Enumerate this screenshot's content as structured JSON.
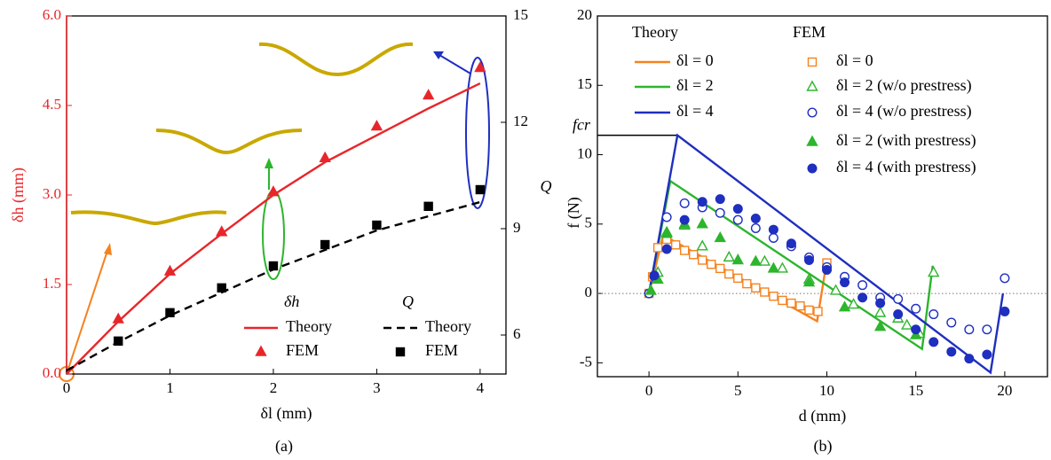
{
  "chart_data": [
    {
      "type": "line",
      "caption": "(a)",
      "x_label": "δl (mm)",
      "y_label": "δh (mm)",
      "y2_label": "Q",
      "xlim": [
        0,
        4.25
      ],
      "xticks": [
        0,
        1,
        2,
        3,
        4
      ],
      "ylim": [
        0,
        6
      ],
      "yticks": [
        {
          "value": 0,
          "label": "0.0"
        },
        {
          "value": 1.5,
          "label": "1.5"
        },
        {
          "value": 3,
          "label": "3.0"
        },
        {
          "value": 4.5,
          "label": "4.5"
        },
        {
          "value": 6,
          "label": "6.0"
        }
      ],
      "y_color": "#e8262a",
      "y2lim": [
        4.9,
        15
      ],
      "y2ticks": [
        6,
        9,
        12,
        15
      ],
      "legend_titles": [
        "δh",
        "Q"
      ],
      "x": [
        0,
        0.5,
        1,
        1.5,
        2,
        2.5,
        3,
        3.5,
        4
      ],
      "series": [
        {
          "name": "Theory",
          "color": "#e8262a",
          "values": [
            0,
            0.88,
            1.68,
            2.35,
            3.0,
            3.55,
            4.0,
            4.45,
            4.87
          ]
        },
        {
          "name": "FEM",
          "color": "#e8262a",
          "marker": "triangle",
          "filled": true,
          "values": [
            null,
            0.92,
            1.72,
            2.38,
            3.05,
            3.62,
            4.15,
            4.67,
            5.13
          ]
        },
        {
          "name": "Theory",
          "color": "#000000",
          "dashed": true,
          "axis": "y2",
          "values": [
            5.0,
            5.8,
            6.55,
            7.2,
            7.85,
            8.4,
            8.95,
            9.35,
            9.75
          ]
        },
        {
          "name": "FEM",
          "color": "#000000",
          "marker": "square",
          "filled": true,
          "axis": "y2",
          "values": [
            null,
            5.83,
            6.63,
            7.33,
            7.95,
            8.55,
            9.1,
            9.63,
            10.1
          ]
        }
      ]
    },
    {
      "type": "line",
      "caption": "(b)",
      "x_label": "d (mm)",
      "y_label": "f (N)",
      "xlim": [
        -2.9,
        22.4
      ],
      "xticks": [
        0,
        5,
        10,
        15,
        20
      ],
      "ylim": [
        -6,
        20
      ],
      "yticks": [
        -5,
        0,
        5,
        10,
        15,
        20
      ],
      "zero_line": true,
      "reference": {
        "label": "fcr",
        "value": 11.4
      },
      "legend_titles": [
        "Theory",
        "FEM"
      ],
      "series": [
        {
          "name": "δl = 0",
          "color": "#f5821f",
          "x": [
            0,
            0.8,
            9.45,
            10
          ],
          "values": [
            0,
            4.2,
            -2.0,
            2.4
          ]
        },
        {
          "name": "δl = 2",
          "color": "#2db52d",
          "x": [
            0,
            1.2,
            15.35,
            15.95
          ],
          "values": [
            0,
            8.1,
            -4.0,
            2.0
          ]
        },
        {
          "name": "δl = 4",
          "color": "#1f2fbf",
          "x": [
            0,
            1.6,
            19.2,
            19.9
          ],
          "values": [
            0,
            11.4,
            -5.7,
            0
          ]
        },
        {
          "name": "δl = 0",
          "color": "#f5821f",
          "marker": "square",
          "filled": false,
          "x": [
            0,
            0.2,
            0.5,
            1,
            1.5,
            2,
            2.5,
            3,
            3.5,
            4,
            4.5,
            5,
            5.5,
            6,
            6.5,
            7,
            7.5,
            8,
            8.5,
            9,
            9.5,
            10
          ],
          "values": [
            0,
            1.2,
            3.3,
            3.9,
            3.5,
            3.1,
            2.8,
            2.4,
            2.1,
            1.8,
            1.4,
            1.1,
            0.7,
            0.4,
            0.1,
            -0.2,
            -0.5,
            -0.7,
            -0.9,
            -1.2,
            -1.3,
            2.2
          ]
        },
        {
          "name": "δl = 2 (w/o prestress)",
          "color": "#2db52d",
          "marker": "triangle",
          "filled": false,
          "x": [
            0.1,
            0.5,
            1.0,
            2.0,
            3.0,
            4.5,
            6.5,
            7.5,
            9.0,
            10.5,
            11.5,
            13.0,
            14.0,
            14.5,
            15.2,
            16.0
          ],
          "values": [
            0.2,
            1.5,
            4.4,
            4.9,
            3.4,
            2.6,
            2.3,
            1.8,
            1.0,
            0.2,
            -0.8,
            -1.4,
            -1.8,
            -2.3,
            -2.9,
            1.5
          ]
        },
        {
          "name": "δl = 4 (w/o prestress)",
          "color": "#1f2fbf",
          "marker": "circle",
          "filled": false,
          "x": [
            0,
            0.3,
            1,
            2,
            3,
            4,
            5,
            6,
            7,
            8,
            9,
            10,
            11,
            12,
            13,
            14,
            15,
            16,
            17,
            18,
            19,
            20
          ],
          "values": [
            0,
            1.2,
            5.5,
            6.5,
            6.2,
            5.8,
            5.3,
            4.7,
            4.0,
            3.4,
            2.6,
            1.9,
            1.2,
            0.6,
            -0.3,
            -0.4,
            -1.1,
            -1.5,
            -2.1,
            -2.6,
            -2.6,
            1.1
          ]
        },
        {
          "name": "δl = 2 (with prestress)",
          "color": "#2db52d",
          "marker": "triangle",
          "filled": true,
          "x": [
            0.1,
            0.5,
            1.0,
            2.0,
            3.0,
            4.0,
            5.0,
            6.0,
            7.0,
            9.0,
            11.0,
            13.0,
            15.0
          ],
          "values": [
            0.2,
            1.0,
            4.3,
            5.0,
            5.0,
            4.0,
            2.4,
            2.3,
            1.8,
            0.8,
            -1.0,
            -2.4,
            -3.0
          ]
        },
        {
          "name": "δl = 4 (with prestress)",
          "color": "#1f2fbf",
          "marker": "circle",
          "filled": true,
          "x": [
            0.3,
            1,
            2,
            3,
            4,
            5,
            6,
            7,
            8,
            9,
            10,
            11,
            12,
            13,
            14,
            15,
            16,
            17,
            18,
            19,
            20
          ],
          "values": [
            1.3,
            3.2,
            5.3,
            6.6,
            6.8,
            6.1,
            5.4,
            4.6,
            3.6,
            2.4,
            1.7,
            0.8,
            -0.3,
            -0.7,
            -1.5,
            -2.6,
            -3.5,
            -4.2,
            -4.7,
            -4.4,
            -1.3
          ]
        }
      ]
    }
  ]
}
